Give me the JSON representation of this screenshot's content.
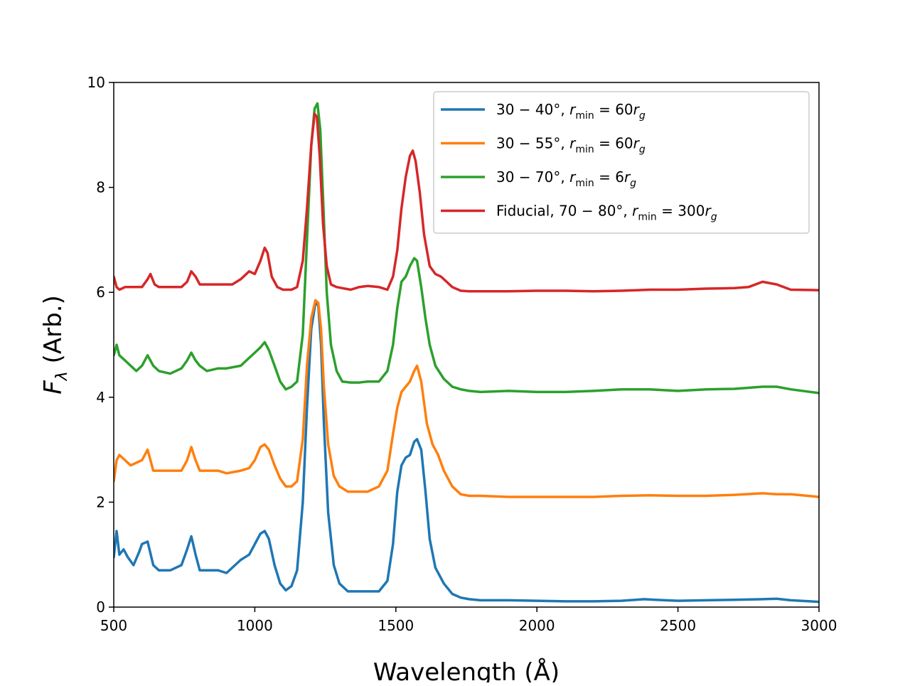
{
  "chart_data": {
    "type": "line",
    "title": "",
    "xlabel": "Wavelength (Å)",
    "ylabel_main": "F",
    "ylabel_sub": "λ",
    "ylabel_rest": " (Arb.)",
    "xlim": [
      500,
      3000
    ],
    "ylim": [
      0,
      10
    ],
    "xticks": [
      500,
      1000,
      1500,
      2000,
      2500,
      3000
    ],
    "yticks": [
      0,
      2,
      4,
      6,
      8,
      10
    ],
    "grid": false,
    "legend_position": "top-right",
    "series": [
      {
        "name": "30 − 40°, rmin = 60rg",
        "legend": {
          "prefix": "30 − 40°, ",
          "r_sym": "r",
          "r_sub": "min",
          "eq": " = 60",
          "g_sym": "r",
          "g_sub": "g"
        },
        "color": "#1f77b4",
        "x": [
          500,
          510,
          520,
          535,
          550,
          570,
          590,
          600,
          620,
          640,
          660,
          700,
          740,
          760,
          775,
          790,
          805,
          830,
          870,
          900,
          950,
          980,
          1000,
          1020,
          1035,
          1050,
          1070,
          1090,
          1110,
          1130,
          1150,
          1170,
          1185,
          1200,
          1215,
          1225,
          1235,
          1245,
          1260,
          1280,
          1300,
          1330,
          1360,
          1400,
          1440,
          1470,
          1490,
          1505,
          1520,
          1535,
          1550,
          1565,
          1575,
          1590,
          1605,
          1620,
          1640,
          1670,
          1700,
          1730,
          1760,
          1800,
          1900,
          2000,
          2100,
          2200,
          2300,
          2380,
          2420,
          2500,
          2600,
          2700,
          2800,
          2850,
          2900,
          3000
        ],
        "y": [
          0.95,
          1.45,
          1.0,
          1.1,
          0.95,
          0.8,
          1.05,
          1.2,
          1.25,
          0.8,
          0.7,
          0.7,
          0.8,
          1.1,
          1.35,
          1.0,
          0.7,
          0.7,
          0.7,
          0.65,
          0.9,
          1.0,
          1.2,
          1.4,
          1.45,
          1.3,
          0.8,
          0.45,
          0.32,
          0.4,
          0.7,
          2.0,
          3.8,
          5.3,
          5.8,
          5.75,
          5.0,
          3.5,
          1.8,
          0.8,
          0.45,
          0.3,
          0.3,
          0.3,
          0.3,
          0.5,
          1.2,
          2.2,
          2.7,
          2.85,
          2.9,
          3.15,
          3.2,
          3.0,
          2.2,
          1.3,
          0.75,
          0.45,
          0.25,
          0.18,
          0.15,
          0.13,
          0.13,
          0.12,
          0.11,
          0.11,
          0.12,
          0.15,
          0.14,
          0.12,
          0.13,
          0.14,
          0.15,
          0.16,
          0.13,
          0.1
        ]
      },
      {
        "name": "30 − 55°, rmin = 60rg",
        "legend": {
          "prefix": "30 − 55°, ",
          "r_sym": "r",
          "r_sub": "min",
          "eq": " = 60",
          "g_sym": "r",
          "g_sub": "g"
        },
        "color": "#ff7f0e",
        "x": [
          500,
          510,
          520,
          540,
          560,
          580,
          600,
          620,
          640,
          660,
          700,
          740,
          760,
          775,
          790,
          805,
          830,
          870,
          900,
          950,
          980,
          1000,
          1020,
          1035,
          1050,
          1070,
          1090,
          1110,
          1130,
          1150,
          1170,
          1185,
          1200,
          1215,
          1225,
          1235,
          1245,
          1260,
          1280,
          1300,
          1330,
          1360,
          1400,
          1440,
          1470,
          1490,
          1505,
          1520,
          1535,
          1550,
          1565,
          1575,
          1590,
          1610,
          1630,
          1650,
          1670,
          1700,
          1730,
          1760,
          1800,
          1900,
          2000,
          2100,
          2200,
          2300,
          2400,
          2500,
          2600,
          2700,
          2800,
          2850,
          2900,
          3000
        ],
        "y": [
          2.4,
          2.8,
          2.9,
          2.8,
          2.7,
          2.75,
          2.8,
          3.0,
          2.6,
          2.6,
          2.6,
          2.6,
          2.8,
          3.05,
          2.8,
          2.6,
          2.6,
          2.6,
          2.55,
          2.6,
          2.65,
          2.8,
          3.05,
          3.1,
          3.0,
          2.7,
          2.45,
          2.3,
          2.3,
          2.4,
          3.2,
          4.6,
          5.5,
          5.85,
          5.8,
          5.3,
          4.2,
          3.1,
          2.5,
          2.3,
          2.2,
          2.2,
          2.2,
          2.3,
          2.6,
          3.3,
          3.8,
          4.1,
          4.2,
          4.3,
          4.5,
          4.6,
          4.3,
          3.5,
          3.1,
          2.9,
          2.6,
          2.3,
          2.15,
          2.12,
          2.12,
          2.1,
          2.1,
          2.1,
          2.1,
          2.12,
          2.13,
          2.12,
          2.12,
          2.14,
          2.17,
          2.15,
          2.15,
          2.1
        ]
      },
      {
        "name": "30 − 70°, rmin = 6rg",
        "legend": {
          "prefix": "30 − 70°, ",
          "r_sym": "r",
          "r_sub": "min",
          "eq": " = 6",
          "g_sym": "r",
          "g_sub": "g"
        },
        "color": "#2ca02c",
        "x": [
          500,
          510,
          520,
          540,
          560,
          580,
          600,
          620,
          640,
          660,
          700,
          740,
          760,
          775,
          790,
          805,
          830,
          870,
          900,
          950,
          980,
          1000,
          1020,
          1035,
          1050,
          1070,
          1090,
          1110,
          1130,
          1150,
          1170,
          1185,
          1200,
          1212,
          1222,
          1232,
          1242,
          1255,
          1270,
          1290,
          1310,
          1340,
          1370,
          1400,
          1440,
          1470,
          1490,
          1505,
          1520,
          1535,
          1550,
          1565,
          1575,
          1590,
          1605,
          1620,
          1640,
          1670,
          1700,
          1730,
          1760,
          1800,
          1900,
          2000,
          2100,
          2200,
          2300,
          2400,
          2500,
          2600,
          2700,
          2800,
          2850,
          2900,
          3000
        ],
        "y": [
          4.8,
          5.0,
          4.8,
          4.7,
          4.6,
          4.5,
          4.6,
          4.8,
          4.6,
          4.5,
          4.45,
          4.55,
          4.7,
          4.85,
          4.7,
          4.6,
          4.5,
          4.55,
          4.55,
          4.6,
          4.75,
          4.85,
          4.95,
          5.05,
          4.9,
          4.6,
          4.3,
          4.15,
          4.2,
          4.3,
          5.2,
          7.0,
          8.8,
          9.5,
          9.6,
          9.1,
          7.8,
          6.0,
          5.0,
          4.5,
          4.3,
          4.28,
          4.28,
          4.3,
          4.3,
          4.5,
          5.0,
          5.7,
          6.2,
          6.3,
          6.5,
          6.65,
          6.6,
          6.1,
          5.5,
          5.0,
          4.6,
          4.35,
          4.2,
          4.15,
          4.12,
          4.1,
          4.12,
          4.1,
          4.1,
          4.12,
          4.15,
          4.15,
          4.12,
          4.15,
          4.16,
          4.2,
          4.2,
          4.15,
          4.08
        ]
      },
      {
        "name": "Fiducial, 70 − 80°, rmin = 300rg",
        "legend": {
          "prefix": "Fiducial, 70 − 80°, ",
          "r_sym": "r",
          "r_sub": "min",
          "eq": " = 300",
          "g_sym": "r",
          "g_sub": "g"
        },
        "color": "#d62728",
        "x": [
          500,
          510,
          520,
          540,
          560,
          580,
          600,
          620,
          630,
          645,
          660,
          700,
          740,
          760,
          775,
          790,
          805,
          830,
          870,
          900,
          920,
          950,
          980,
          1000,
          1020,
          1035,
          1045,
          1060,
          1080,
          1100,
          1130,
          1150,
          1170,
          1185,
          1200,
          1212,
          1220,
          1230,
          1242,
          1255,
          1270,
          1290,
          1310,
          1340,
          1370,
          1400,
          1440,
          1470,
          1490,
          1505,
          1520,
          1535,
          1550,
          1560,
          1570,
          1585,
          1600,
          1620,
          1640,
          1660,
          1680,
          1700,
          1730,
          1760,
          1800,
          1900,
          2000,
          2100,
          2200,
          2300,
          2400,
          2500,
          2600,
          2700,
          2750,
          2800,
          2850,
          2900,
          3000
        ],
        "y": [
          6.3,
          6.1,
          6.05,
          6.1,
          6.1,
          6.1,
          6.1,
          6.25,
          6.35,
          6.15,
          6.1,
          6.1,
          6.1,
          6.2,
          6.4,
          6.3,
          6.15,
          6.15,
          6.15,
          6.15,
          6.15,
          6.25,
          6.4,
          6.35,
          6.6,
          6.85,
          6.75,
          6.3,
          6.1,
          6.05,
          6.05,
          6.1,
          6.6,
          7.6,
          8.8,
          9.4,
          9.35,
          8.6,
          7.3,
          6.5,
          6.15,
          6.1,
          6.08,
          6.05,
          6.1,
          6.12,
          6.1,
          6.05,
          6.3,
          6.8,
          7.6,
          8.2,
          8.6,
          8.7,
          8.5,
          7.9,
          7.1,
          6.5,
          6.35,
          6.3,
          6.2,
          6.1,
          6.03,
          6.02,
          6.02,
          6.02,
          6.03,
          6.03,
          6.02,
          6.03,
          6.05,
          6.05,
          6.07,
          6.08,
          6.1,
          6.2,
          6.15,
          6.05,
          6.04
        ]
      }
    ]
  }
}
